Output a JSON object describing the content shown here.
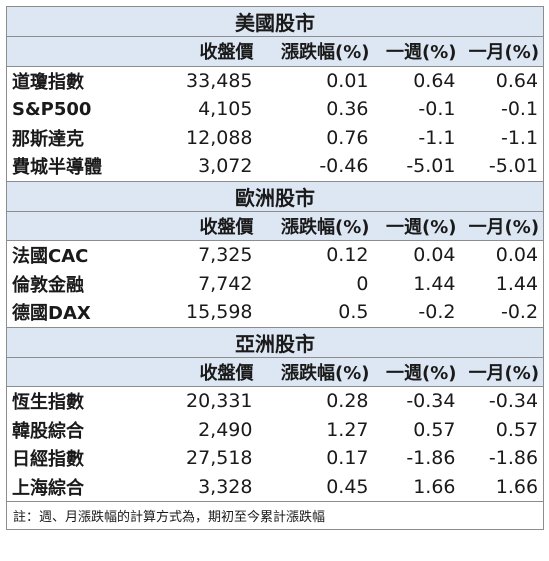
{
  "columns": [
    "收盤價",
    "漲跌幅(%)",
    "一週(%)",
    "一月(%)"
  ],
  "sections": [
    {
      "title": "美國股市",
      "rows": [
        {
          "name": "道瓊指數",
          "close": "33,485",
          "change": "0.01",
          "week": "0.64",
          "month": "0.64"
        },
        {
          "name": "S&P500",
          "close": "4,105",
          "change": "0.36",
          "week": "-0.1",
          "month": "-0.1"
        },
        {
          "name": "那斯達克",
          "close": "12,088",
          "change": "0.76",
          "week": "-1.1",
          "month": "-1.1"
        },
        {
          "name": "費城半導體",
          "close": "3,072",
          "change": "-0.46",
          "week": "-5.01",
          "month": "-5.01"
        }
      ]
    },
    {
      "title": "歐洲股市",
      "rows": [
        {
          "name": "法國CAC",
          "close": "7,325",
          "change": "0.12",
          "week": "0.04",
          "month": "0.04"
        },
        {
          "name": "倫敦金融",
          "close": "7,742",
          "change": "0",
          "week": "1.44",
          "month": "1.44"
        },
        {
          "name": "德國DAX",
          "close": "15,598",
          "change": "0.5",
          "week": "-0.2",
          "month": "-0.2"
        }
      ]
    },
    {
      "title": "亞洲股市",
      "rows": [
        {
          "name": "恆生指數",
          "close": "20,331",
          "change": "0.28",
          "week": "-0.34",
          "month": "-0.34"
        },
        {
          "name": "韓股綜合",
          "close": "2,490",
          "change": "1.27",
          "week": "0.57",
          "month": "0.57"
        },
        {
          "name": "日經指數",
          "close": "27,518",
          "change": "0.17",
          "week": "-1.86",
          "month": "-1.86"
        },
        {
          "name": "上海綜合",
          "close": "3,328",
          "change": "0.45",
          "week": "1.66",
          "month": "1.66"
        }
      ]
    }
  ],
  "note": "註：週、月漲跌幅的計算方式為，期初至今累計漲跌幅"
}
